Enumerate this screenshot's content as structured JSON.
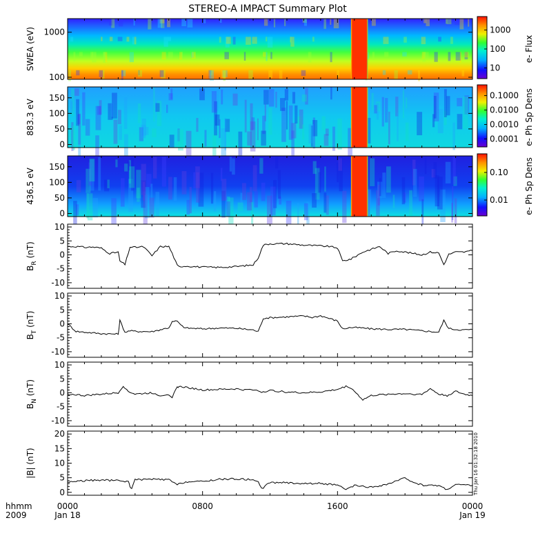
{
  "title": "STEREO-A IMPACT Summary Plot",
  "footer": {
    "left_line1": "hhmm",
    "left_line2": "2009",
    "ticks": [
      {
        "time": "0000",
        "date": "Jan 18",
        "hour": 0
      },
      {
        "time": "0800",
        "date": "",
        "hour": 8
      },
      {
        "time": "1600",
        "date": "",
        "hour": 16
      },
      {
        "time": "0000",
        "date": "Jan 19",
        "hour": 24
      }
    ]
  },
  "timestamp": "Thu Jan 16 01:32:18 2010",
  "chart_data": [
    {
      "type": "heatmap",
      "id": "swea",
      "ylabel": "SWEA (eV)",
      "yscale": "log",
      "ylim": [
        90,
        2000
      ],
      "yticks": [
        "1000",
        "100"
      ],
      "colorbar_label": "e- Flux",
      "colorbar_ticks": [
        "1000",
        "100",
        "10"
      ],
      "data_gap_hours": [
        16.8,
        17.8
      ]
    },
    {
      "type": "heatmap",
      "id": "pad883",
      "ylabel": "883.3 eV",
      "ylim": [
        -10,
        185
      ],
      "yticks": [
        "150",
        "100",
        "50",
        "0"
      ],
      "colorbar_label": "e- Ph Sp Dens",
      "colorbar_ticks": [
        "0.1000",
        "0.0100",
        "0.0010",
        "0.0001"
      ],
      "data_gap_hours": [
        16.8,
        17.8
      ]
    },
    {
      "type": "heatmap",
      "id": "pad436",
      "ylabel": "436.5 eV",
      "ylim": [
        -10,
        185
      ],
      "yticks": [
        "150",
        "100",
        "50",
        "0"
      ],
      "colorbar_label": "e- Ph Sp Dens",
      "colorbar_ticks": [
        "0.10",
        "0.01"
      ],
      "data_gap_hours": [
        16.8,
        17.8
      ]
    },
    {
      "type": "line",
      "id": "br",
      "ylabel": "B",
      "ylabel_sub": "R",
      "ylabel_unit": " (nT)",
      "ylim": [
        -12,
        11
      ],
      "yticks": [
        "10",
        "5",
        "0",
        "-5",
        "-10"
      ],
      "x_hours": [
        0,
        0.5,
        1,
        1.5,
        2,
        2.5,
        3,
        3.1,
        3.4,
        3.7,
        4,
        4.5,
        5,
        5.5,
        6,
        6.2,
        6.5,
        6.6,
        7,
        8,
        9,
        10,
        11,
        11.3,
        11.6,
        12,
        13,
        14,
        15,
        15.5,
        16,
        16.3,
        16.8,
        17.5,
        18,
        18.5,
        19,
        19.5,
        20,
        20.5,
        21,
        21.5,
        22,
        22.3,
        22.6,
        23,
        23.5,
        24
      ],
      "y_values": [
        3,
        3,
        2.7,
        2.8,
        2.4,
        0.5,
        1,
        -2.2,
        -3.5,
        2.8,
        2.7,
        2.9,
        -0.3,
        3,
        3,
        0.5,
        -3.8,
        -4.2,
        -4,
        -4.4,
        -4.5,
        -4.2,
        -3.6,
        -1,
        3.5,
        4,
        4,
        3.5,
        3.2,
        3,
        2.5,
        -2.2,
        -1.5,
        1,
        2,
        3,
        0.5,
        1.5,
        1,
        0.5,
        0,
        1,
        0.7,
        -3.5,
        0.2,
        1,
        1,
        1.5
      ]
    },
    {
      "type": "line",
      "id": "bt",
      "ylabel": "B",
      "ylabel_sub": "T",
      "ylabel_unit": " (nT)",
      "ylim": [
        -12,
        11
      ],
      "yticks": [
        "10",
        "5",
        "0",
        "-5",
        "-10"
      ],
      "x_hours": [
        0,
        0.5,
        1,
        2,
        3,
        3.1,
        3.4,
        3.7,
        4,
        5,
        6,
        6.2,
        6.5,
        6.7,
        7,
        8,
        9,
        10,
        11,
        11.3,
        11.6,
        12,
        13,
        14,
        14.5,
        15,
        16,
        16.3,
        16.8,
        17.5,
        18,
        19,
        20,
        21,
        22,
        22.3,
        22.6,
        23,
        23.5,
        24
      ],
      "y_values": [
        0,
        -2.7,
        -3,
        -3.5,
        -3.7,
        1.2,
        -3,
        -2.5,
        -2.7,
        -2.8,
        -1.4,
        0.7,
        1,
        -0.5,
        -1.5,
        -1.8,
        -1.5,
        -1.6,
        -2.2,
        -2.8,
        2,
        2.2,
        2.5,
        2.8,
        2.3,
        2.9,
        1,
        -1.8,
        -1.3,
        -1.5,
        -1.8,
        -2,
        -2,
        -2.5,
        -3,
        1.2,
        -1.7,
        -2,
        -2.2,
        -2
      ]
    },
    {
      "type": "line",
      "id": "bn",
      "ylabel": "B",
      "ylabel_sub": "N",
      "ylabel_unit": " (nT)",
      "ylim": [
        -12,
        11
      ],
      "yticks": [
        "10",
        "5",
        "0",
        "-5",
        "-10"
      ],
      "x_hours": [
        0,
        0.5,
        1,
        2,
        3,
        3.3,
        3.6,
        4,
        5,
        5.5,
        6,
        6.2,
        6.5,
        6.6,
        7,
        8,
        9,
        10,
        10.5,
        11,
        11.5,
        12,
        13,
        14,
        15,
        16,
        16.5,
        16.8,
        17.5,
        18,
        19,
        20,
        21,
        21.5,
        22,
        22.5,
        23,
        23.5,
        24
      ],
      "y_values": [
        -0.5,
        -0.7,
        -1,
        -0.5,
        0,
        2.5,
        0.5,
        -0.5,
        0,
        -1,
        -0.5,
        -1.5,
        2,
        2.2,
        2,
        1,
        1.2,
        1.4,
        1,
        1.2,
        0.3,
        0.8,
        0.3,
        0,
        0.3,
        1.2,
        2.3,
        1.8,
        -2.5,
        -1,
        -0.5,
        -0.3,
        -0.6,
        1.5,
        -0.5,
        -1,
        0.5,
        -0.5,
        -1
      ]
    },
    {
      "type": "line",
      "id": "bmag",
      "ylabel": "|B| (nT)",
      "ylim": [
        -1,
        21
      ],
      "yticks": [
        "20",
        "15",
        "10",
        "5",
        "0"
      ],
      "x_hours": [
        0,
        0.5,
        1,
        2,
        3,
        3.6,
        3.7,
        3.8,
        4,
        5,
        6,
        6.5,
        7,
        8,
        9,
        10,
        11,
        11.3,
        11.5,
        12,
        13,
        14,
        15,
        16,
        16.5,
        17,
        18,
        19,
        20,
        20.5,
        21,
        22,
        22.5,
        23,
        23.5,
        24
      ],
      "y_values": [
        3.5,
        3.8,
        4,
        4.2,
        4,
        3.7,
        2,
        1.5,
        4.3,
        4.5,
        4.3,
        2.6,
        3.6,
        3.7,
        4.5,
        4.6,
        4.3,
        3.9,
        1.2,
        3.4,
        3.3,
        3,
        3.1,
        2.4,
        0.9,
        2.3,
        1.7,
        2.8,
        4.9,
        3.5,
        2.5,
        2.3,
        1,
        2.7,
        2.5,
        2.4
      ]
    }
  ]
}
